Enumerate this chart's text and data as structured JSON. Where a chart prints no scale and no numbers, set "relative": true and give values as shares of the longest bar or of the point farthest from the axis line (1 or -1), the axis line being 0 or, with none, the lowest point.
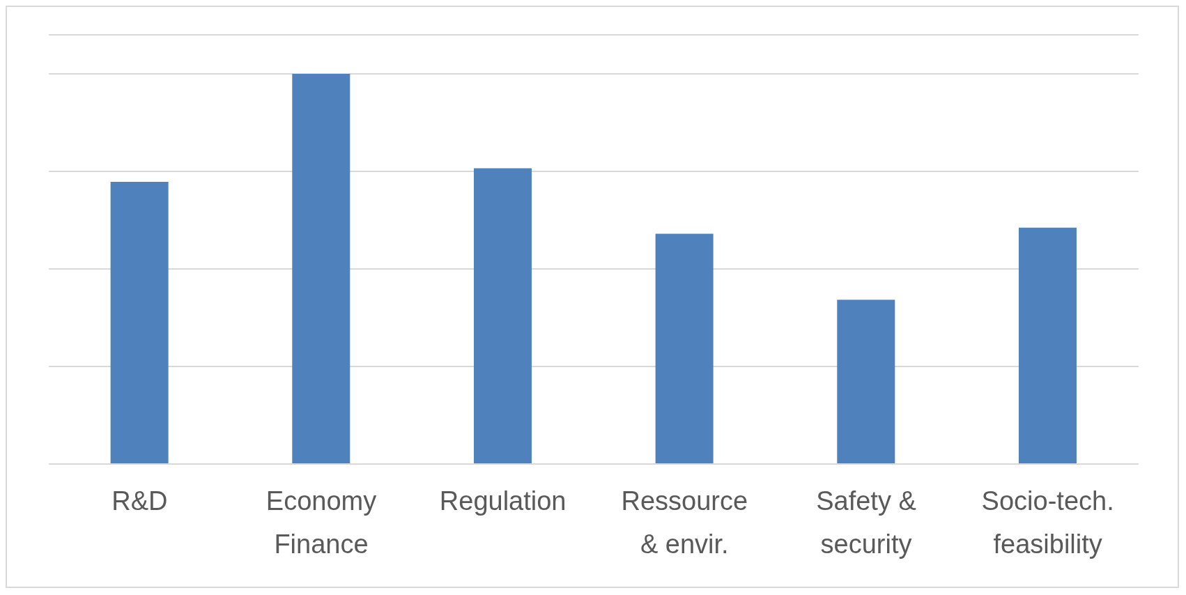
{
  "chart_data": {
    "type": "bar",
    "relative": true,
    "categories": [
      "R&D",
      "Economy Finance",
      "Regulation",
      "Ressource & envir.",
      "Safety & security",
      "Socio-tech. feasibility"
    ],
    "values": [
      0.723,
      1,
      0.758,
      0.59,
      0.421,
      0.606
    ],
    "color": "#4f81bd",
    "grid": "y"
  }
}
